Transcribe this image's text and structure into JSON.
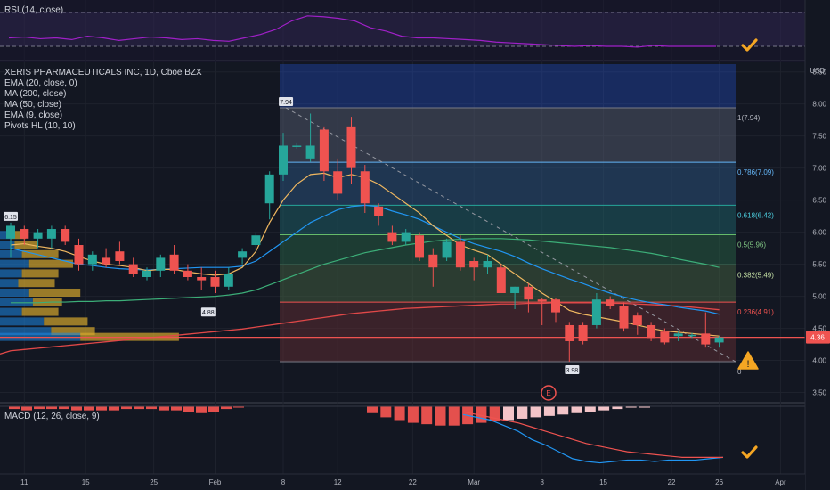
{
  "rsi_label": "RSI (14, close)",
  "macd_label": "MACD (12, 26, close, 9)",
  "legend": [
    "XERIS PHARMACEUTICALS INC, 1D, Cboe BZX",
    "EMA (20, close, 0)",
    "MA (200, close)",
    "MA (50, close)",
    "EMA (9, close)",
    "Pivots HL (10, 10)"
  ],
  "currency": "USD",
  "last_price": "4.36",
  "e_marker": "E",
  "colors": {
    "background": "#131722",
    "up": "#26a69a",
    "down": "#ef5350",
    "rsi": "#a020c8",
    "ema20": "#f0b860",
    "ma200": "#e04848",
    "ma50": "#3cae78",
    "ema9": "#2196f3",
    "check": "#f5a623"
  },
  "chart_data": [
    {
      "type": "line",
      "name": "RSI",
      "ylim": [
        0,
        100
      ],
      "yticks": [
        "80.00",
        "60.00",
        "40.00"
      ],
      "values": [
        50,
        51,
        49,
        50,
        48,
        52,
        50,
        47,
        49,
        51,
        50,
        48,
        49,
        47,
        46,
        50,
        54,
        60,
        70,
        76,
        75,
        73,
        70,
        62,
        58,
        52,
        50,
        50,
        49,
        48,
        47,
        45,
        44,
        43,
        42,
        41,
        40,
        41,
        40,
        40,
        39,
        41,
        40,
        40,
        40,
        40
      ]
    },
    {
      "type": "candlestick",
      "title": "XERIS PHARMACEUTICALS INC, 1D, Cboe BZX",
      "ylim": [
        3.3,
        8.55
      ],
      "yticks": [
        "8.50",
        "8.00",
        "7.50",
        "7.00",
        "6.50",
        "6.00",
        "5.50",
        "5.00",
        "4.50",
        "4.00",
        "3.50"
      ],
      "xticks": [
        "11",
        "15",
        "25",
        "Feb",
        "8",
        "12",
        "22",
        "Mar",
        "8",
        "15",
        "22",
        "26",
        "Apr"
      ],
      "candles": [
        {
          "o": 5.9,
          "h": 6.15,
          "l": 5.6,
          "c": 6.1
        },
        {
          "o": 6.05,
          "h": 6.1,
          "l": 5.8,
          "c": 5.9
        },
        {
          "o": 5.9,
          "h": 6.05,
          "l": 5.75,
          "c": 6.0
        },
        {
          "o": 5.9,
          "h": 6.1,
          "l": 5.75,
          "c": 6.05
        },
        {
          "o": 6.05,
          "h": 6.1,
          "l": 5.8,
          "c": 5.85
        },
        {
          "o": 5.8,
          "h": 5.9,
          "l": 5.4,
          "c": 5.5
        },
        {
          "o": 5.5,
          "h": 5.7,
          "l": 5.4,
          "c": 5.65
        },
        {
          "o": 5.6,
          "h": 5.75,
          "l": 5.45,
          "c": 5.5
        },
        {
          "o": 5.7,
          "h": 5.85,
          "l": 5.5,
          "c": 5.55
        },
        {
          "o": 5.5,
          "h": 5.6,
          "l": 5.3,
          "c": 5.35
        },
        {
          "o": 5.3,
          "h": 5.45,
          "l": 5.25,
          "c": 5.4
        },
        {
          "o": 5.4,
          "h": 5.65,
          "l": 5.3,
          "c": 5.6
        },
        {
          "o": 5.65,
          "h": 5.8,
          "l": 5.35,
          "c": 5.4
        },
        {
          "o": 5.4,
          "h": 5.5,
          "l": 5.25,
          "c": 5.3
        },
        {
          "o": 5.3,
          "h": 5.45,
          "l": 5.1,
          "c": 5.25
        },
        {
          "o": 5.3,
          "h": 5.4,
          "l": 5.05,
          "c": 5.15
        },
        {
          "o": 5.15,
          "h": 5.45,
          "l": 5.1,
          "c": 5.35
        },
        {
          "o": 5.6,
          "h": 5.75,
          "l": 5.5,
          "c": 5.7
        },
        {
          "o": 5.8,
          "h": 6.0,
          "l": 5.7,
          "c": 5.95
        },
        {
          "o": 6.45,
          "h": 6.95,
          "l": 6.2,
          "c": 6.9
        },
        {
          "o": 6.9,
          "h": 7.55,
          "l": 6.8,
          "c": 7.35
        },
        {
          "o": 7.35,
          "h": 7.4,
          "l": 7.3,
          "c": 7.35
        },
        {
          "o": 7.15,
          "h": 7.85,
          "l": 7.1,
          "c": 7.35
        },
        {
          "o": 7.6,
          "h": 7.65,
          "l": 6.8,
          "c": 6.95
        },
        {
          "o": 6.95,
          "h": 7.15,
          "l": 6.5,
          "c": 6.6
        },
        {
          "o": 7.65,
          "h": 7.8,
          "l": 6.75,
          "c": 7.0
        },
        {
          "o": 6.95,
          "h": 7.05,
          "l": 6.3,
          "c": 6.45
        },
        {
          "o": 6.4,
          "h": 6.45,
          "l": 6.1,
          "c": 6.25
        },
        {
          "o": 6.0,
          "h": 6.1,
          "l": 5.8,
          "c": 5.85
        },
        {
          "o": 5.85,
          "h": 6.05,
          "l": 5.8,
          "c": 6.0
        },
        {
          "o": 5.95,
          "h": 6.0,
          "l": 5.55,
          "c": 5.6
        },
        {
          "o": 5.65,
          "h": 5.75,
          "l": 5.15,
          "c": 5.45
        },
        {
          "o": 5.6,
          "h": 5.9,
          "l": 5.55,
          "c": 5.85
        },
        {
          "o": 5.85,
          "h": 5.95,
          "l": 5.4,
          "c": 5.45
        },
        {
          "o": 5.55,
          "h": 5.6,
          "l": 5.25,
          "c": 5.45
        },
        {
          "o": 5.45,
          "h": 5.65,
          "l": 5.35,
          "c": 5.55
        },
        {
          "o": 5.45,
          "h": 5.5,
          "l": 5.05,
          "c": 5.05
        },
        {
          "o": 5.05,
          "h": 5.15,
          "l": 4.8,
          "c": 5.15
        },
        {
          "o": 5.15,
          "h": 5.2,
          "l": 4.75,
          "c": 4.95
        },
        {
          "o": 4.95,
          "h": 4.98,
          "l": 4.55,
          "c": 4.92
        },
        {
          "o": 4.95,
          "h": 4.98,
          "l": 4.6,
          "c": 4.75
        },
        {
          "o": 4.55,
          "h": 4.6,
          "l": 3.98,
          "c": 4.3
        },
        {
          "o": 4.55,
          "h": 4.6,
          "l": 4.25,
          "c": 4.3
        },
        {
          "o": 4.55,
          "h": 5.05,
          "l": 4.5,
          "c": 4.95
        },
        {
          "o": 4.95,
          "h": 5.0,
          "l": 4.8,
          "c": 4.85
        },
        {
          "o": 4.85,
          "h": 4.9,
          "l": 4.45,
          "c": 4.5
        },
        {
          "o": 4.7,
          "h": 4.75,
          "l": 4.4,
          "c": 4.55
        },
        {
          "o": 4.55,
          "h": 4.6,
          "l": 4.3,
          "c": 4.35
        },
        {
          "o": 4.45,
          "h": 4.5,
          "l": 4.25,
          "c": 4.28
        },
        {
          "o": 4.38,
          "h": 4.45,
          "l": 4.3,
          "c": 4.42
        },
        {
          "o": 4.4,
          "h": 4.43,
          "l": 4.35,
          "c": 4.4
        },
        {
          "o": 4.42,
          "h": 4.75,
          "l": 4.2,
          "c": 4.25
        },
        {
          "o": 4.28,
          "h": 4.38,
          "l": 4.2,
          "c": 4.36
        }
      ],
      "ema20": [
        5.8,
        5.82,
        5.78,
        5.75,
        5.7,
        5.62,
        5.55,
        5.5,
        5.48,
        5.45,
        5.4,
        5.42,
        5.42,
        5.38,
        5.35,
        5.33,
        5.35,
        5.45,
        5.7,
        6.15,
        6.5,
        6.75,
        6.9,
        6.92,
        6.85,
        6.9,
        6.85,
        6.75,
        6.6,
        6.45,
        6.3,
        6.1,
        5.95,
        5.8,
        5.72,
        5.65,
        5.5,
        5.35,
        5.2,
        5.05,
        4.92,
        4.78,
        4.72,
        4.68,
        4.64,
        4.6,
        4.55,
        4.5,
        4.46,
        4.44,
        4.42,
        4.4,
        4.38
      ],
      "ema9": [
        5.75,
        5.7,
        5.65,
        5.6,
        5.55,
        5.5,
        5.48,
        5.45,
        5.43,
        5.42,
        5.41,
        5.42,
        5.43,
        5.44,
        5.45,
        5.45,
        5.45,
        5.47,
        5.55,
        5.7,
        5.85,
        6.0,
        6.15,
        6.25,
        6.35,
        6.4,
        6.42,
        6.4,
        6.33,
        6.27,
        6.2,
        6.1,
        6.0,
        5.9,
        5.82,
        5.76,
        5.7,
        5.62,
        5.52,
        5.43,
        5.35,
        5.27,
        5.2,
        5.12,
        5.05,
        4.99,
        4.94,
        4.9,
        4.87,
        4.83,
        4.8,
        4.77,
        4.72
      ],
      "ma50": [
        4.9,
        4.9,
        4.9,
        4.91,
        4.91,
        4.92,
        4.92,
        4.93,
        4.93,
        4.94,
        4.95,
        4.96,
        4.97,
        4.98,
        4.99,
        5.0,
        5.02,
        5.05,
        5.1,
        5.18,
        5.26,
        5.34,
        5.42,
        5.5,
        5.56,
        5.62,
        5.68,
        5.72,
        5.76,
        5.8,
        5.83,
        5.86,
        5.88,
        5.89,
        5.9,
        5.9,
        5.9,
        5.89,
        5.88,
        5.86,
        5.84,
        5.82,
        5.8,
        5.78,
        5.76,
        5.73,
        5.7,
        5.67,
        5.63,
        5.58,
        5.54,
        5.5,
        5.45
      ],
      "ma200": [
        4.15,
        4.17,
        4.19,
        4.21,
        4.23,
        4.25,
        4.27,
        4.29,
        4.31,
        4.33,
        4.35,
        4.37,
        4.39,
        4.41,
        4.43,
        4.45,
        4.47,
        4.49,
        4.52,
        4.55,
        4.58,
        4.61,
        4.64,
        4.67,
        4.7,
        4.73,
        4.75,
        4.77,
        4.79,
        4.81,
        4.82,
        4.83,
        4.84,
        4.85,
        4.86,
        4.87,
        4.88,
        4.88,
        4.89,
        4.89,
        4.9,
        4.9,
        4.9,
        4.9,
        4.89,
        4.89,
        4.88,
        4.87,
        4.86,
        4.85,
        4.83,
        4.81,
        4.79
      ],
      "fib_levels": [
        {
          "label": "1(7.94)",
          "value": 7.94
        },
        {
          "label": "0.786(7.09)",
          "value": 7.09
        },
        {
          "label": "0.618(6.42)",
          "value": 6.42
        },
        {
          "label": "0.5(5.96)",
          "value": 5.96
        },
        {
          "label": "0.382(5.49)",
          "value": 5.49
        },
        {
          "label": "0.236(4.91)",
          "value": 4.91
        },
        {
          "label": "0",
          "value": 3.98
        }
      ],
      "pivot_labels": [
        {
          "label": "6.15",
          "value": 6.15
        },
        {
          "label": "4.88",
          "value": 4.88
        },
        {
          "label": "7.94",
          "value": 7.94
        },
        {
          "label": "3.98",
          "value": 3.98
        }
      ],
      "volume_profile": [
        {
          "price": 5.95,
          "up": 3,
          "down": 4
        },
        {
          "price": 5.8,
          "up": 4,
          "down": 6
        },
        {
          "price": 5.65,
          "up": 6,
          "down": 10
        },
        {
          "price": 5.5,
          "up": 8,
          "down": 12
        },
        {
          "price": 5.35,
          "up": 6,
          "down": 10
        },
        {
          "price": 5.2,
          "up": 5,
          "down": 10
        },
        {
          "price": 5.05,
          "up": 8,
          "down": 14
        },
        {
          "price": 4.9,
          "up": 9,
          "down": 8
        },
        {
          "price": 4.75,
          "up": 6,
          "down": 10
        },
        {
          "price": 4.6,
          "up": 12,
          "down": 12
        },
        {
          "price": 4.45,
          "up": 14,
          "down": 12
        },
        {
          "price": 4.36,
          "up": 22,
          "down": 27
        }
      ]
    },
    {
      "type": "bar",
      "name": "MACD",
      "ylim": [
        -0.47,
        0.02
      ],
      "yticks": [
        "-0.20",
        "-0.40"
      ],
      "histogram": [
        -0.02,
        -0.03,
        -0.02,
        -0.02,
        -0.02,
        -0.03,
        -0.03,
        -0.03,
        -0.03,
        -0.02,
        -0.02,
        -0.02,
        -0.03,
        -0.03,
        -0.04,
        -0.05,
        -0.04,
        -0.02,
        -0.01,
        0,
        0,
        0,
        0,
        0,
        0,
        -0.05,
        -0.08,
        -0.1,
        -0.12,
        -0.13,
        -0.14,
        -0.14,
        -0.13,
        -0.12,
        -0.11,
        -0.1,
        -0.09,
        -0.08,
        -0.07,
        -0.06,
        -0.05,
        -0.04,
        -0.03,
        -0.02,
        -0.01,
        -0.01
      ],
      "macd": [
        -0.06,
        -0.08,
        -0.1,
        -0.14,
        -0.18,
        -0.24,
        -0.28,
        -0.33,
        -0.38,
        -0.4,
        -0.41,
        -0.4,
        -0.39,
        -0.39,
        -0.4,
        -0.39,
        -0.39,
        -0.39,
        -0.38,
        -0.37
      ],
      "signal": [
        -0.04,
        -0.06,
        -0.08,
        -0.1,
        -0.12,
        -0.15,
        -0.18,
        -0.21,
        -0.24,
        -0.27,
        -0.29,
        -0.31,
        -0.33,
        -0.34,
        -0.35,
        -0.36,
        -0.37,
        -0.37,
        -0.37,
        -0.37
      ]
    }
  ]
}
